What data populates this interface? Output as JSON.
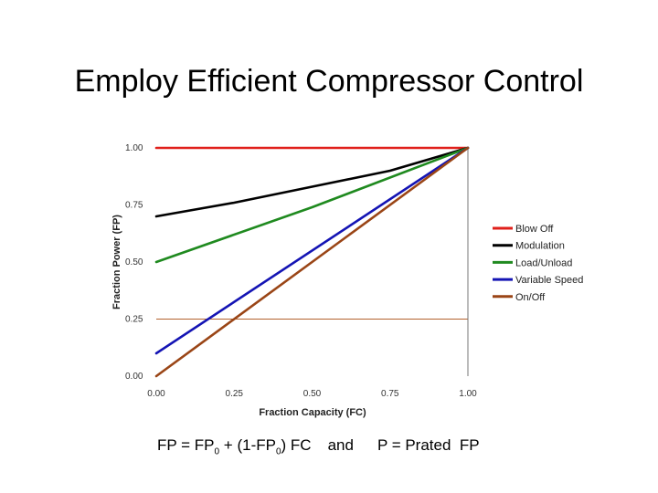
{
  "slide": {
    "title": "Employ Efficient Compressor Control"
  },
  "formula": {
    "lhs": "FP = FP",
    "sub1": "0",
    "mid": " + (1-FP",
    "sub2": "0",
    "rhs": ") FC",
    "and": "and",
    "second": "P = Prated  FP"
  },
  "chart_data": {
    "type": "line",
    "xlabel": "Fraction Capacity (FC)",
    "ylabel": "Fraction Power (FP)",
    "xlim": [
      0,
      1
    ],
    "ylim": [
      0,
      1
    ],
    "xticks": [
      "0.00",
      "0.25",
      "0.50",
      "0.75",
      "1.00"
    ],
    "yticks": [
      "0.00",
      "0.25",
      "0.50",
      "0.75",
      "1.00"
    ],
    "reference_line_y": 0.25,
    "legend_position": "right",
    "series": [
      {
        "name": "Blow Off",
        "color": "#e0201b",
        "x": [
          0,
          1
        ],
        "y": [
          1.0,
          1.0
        ]
      },
      {
        "name": "Modulation",
        "color": "#000000",
        "x": [
          0,
          0.25,
          0.5,
          0.75,
          1.0
        ],
        "y": [
          0.7,
          0.76,
          0.83,
          0.9,
          1.0
        ]
      },
      {
        "name": "Load/Unload",
        "color": "#1f8a1f",
        "x": [
          0,
          0.5,
          1.0
        ],
        "y": [
          0.5,
          0.74,
          1.0
        ]
      },
      {
        "name": "Variable Speed",
        "color": "#1414b4",
        "x": [
          0,
          1.0
        ],
        "y": [
          0.1,
          1.0
        ]
      },
      {
        "name": "On/Off",
        "color": "#9a4516",
        "x": [
          0,
          1.0
        ],
        "y": [
          0.0,
          1.0
        ]
      }
    ]
  }
}
